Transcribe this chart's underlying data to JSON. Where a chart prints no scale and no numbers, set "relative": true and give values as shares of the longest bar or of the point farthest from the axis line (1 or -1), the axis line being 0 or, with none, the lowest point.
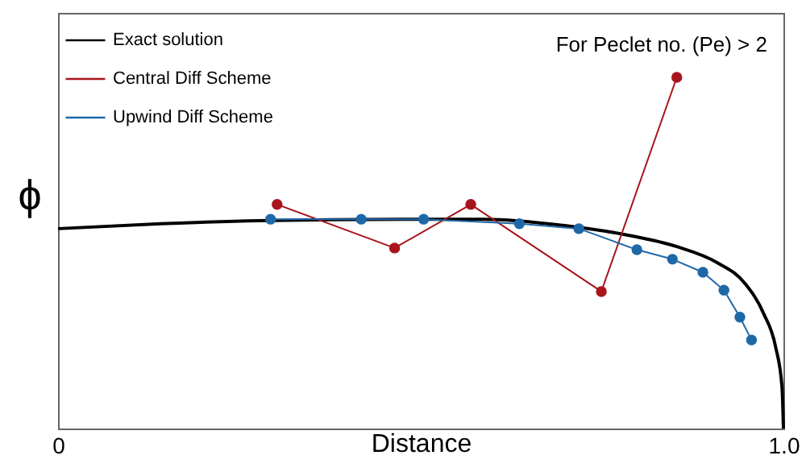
{
  "chart_data": {
    "type": "line",
    "relative": true,
    "xlabel": "Distance",
    "ylabel": "ϕ",
    "annotations": [
      "For Peclet no. (Pe)  > 2"
    ],
    "xlim": [
      0,
      1
    ],
    "xticks": [
      0,
      {
        "value": 1,
        "label": "1.0"
      }
    ],
    "grid": false,
    "legend": "top left",
    "series": [
      {
        "name": "Exact solution",
        "color": "#000000",
        "marker": "none",
        "x": [
          0,
          0.142,
          0.276,
          0.476,
          0.587,
          0.698,
          0.787,
          0.853,
          0.909,
          0.947,
          0.973,
          0.989,
          0.998,
          1
        ],
        "values": [
          0.569,
          0.583,
          0.592,
          0.596,
          0.596,
          0.578,
          0.55,
          0.518,
          0.472,
          0.413,
          0.326,
          0.234,
          0.119,
          0
        ]
      },
      {
        "name": "Central Diff Scheme",
        "color": "#a8141c",
        "marker": "circle",
        "x": [
          0.302,
          0.464,
          0.569,
          0.749,
          0.853
        ],
        "values": [
          0.638,
          0.514,
          0.638,
          0.39,
          1
        ]
      },
      {
        "name": "Upwind Diff Scheme",
        "color": "#1f68a8",
        "marker": "circle",
        "x": [
          0.293,
          0.418,
          0.504,
          0.636,
          0.718,
          0.798,
          0.847,
          0.889,
          0.918,
          0.94,
          0.956
        ],
        "values": [
          0.596,
          0.596,
          0.596,
          0.583,
          0.569,
          0.509,
          0.482,
          0.445,
          0.394,
          0.317,
          0.252
        ]
      }
    ]
  }
}
